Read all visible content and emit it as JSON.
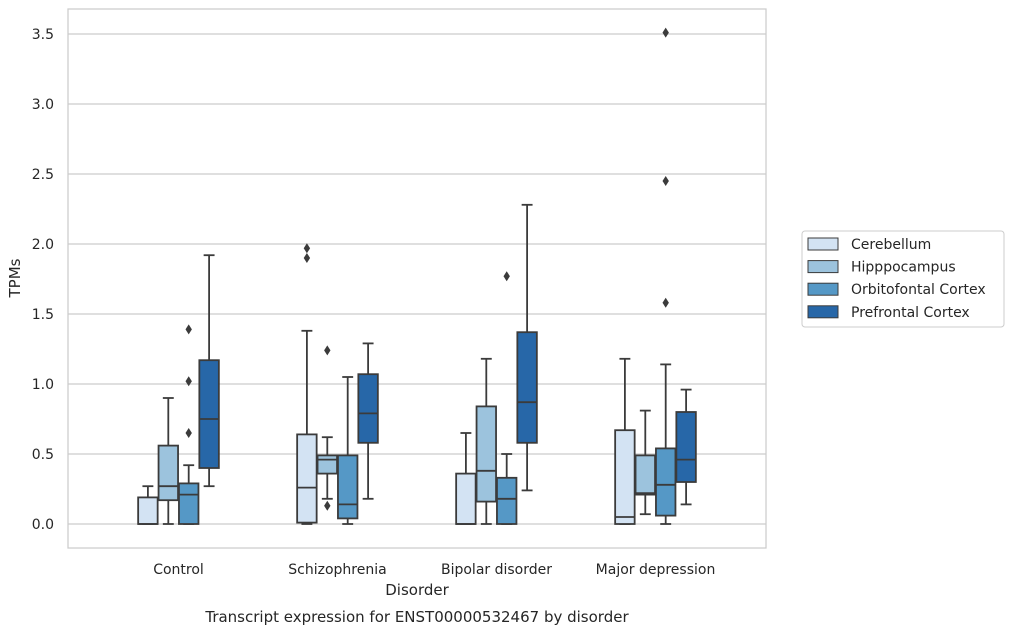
{
  "chart_data": {
    "type": "boxplot",
    "title": "Transcript expression for ENST00000532467 by disorder",
    "xlabel": "Disorder",
    "ylabel": "TPMs",
    "ylim": [
      -0.17,
      3.69
    ],
    "yticks": [
      0.0,
      0.5,
      1.0,
      1.5,
      2.0,
      2.5,
      3.0,
      3.5
    ],
    "ytick_labels": [
      "0.0",
      "0.5",
      "1.0",
      "1.5",
      "2.0",
      "2.5",
      "3.0",
      "3.5"
    ],
    "grid": "horizontal",
    "legend_position": "right",
    "categories": [
      "Control",
      "Schizophrenia",
      "Bipolar disorder",
      "Major depression"
    ],
    "series": [
      {
        "name": "Cerebellum",
        "color": "#d3e3f3",
        "boxes": [
          {
            "whislo": 0.0,
            "q1": 0.0,
            "med": 0.0,
            "q3": 0.19,
            "whishi": 0.27,
            "fliers": []
          },
          {
            "whislo": 0.0,
            "q1": 0.01,
            "med": 0.26,
            "q3": 0.64,
            "whishi": 1.38,
            "fliers": [
              1.9,
              1.97
            ]
          },
          {
            "whislo": 0.0,
            "q1": 0.0,
            "med": 0.0,
            "q3": 0.36,
            "whishi": 0.65,
            "fliers": []
          },
          {
            "whislo": 0.0,
            "q1": 0.0,
            "med": 0.05,
            "q3": 0.67,
            "whishi": 1.18,
            "fliers": []
          }
        ]
      },
      {
        "name": "Hipppocampus",
        "color": "#9cc3dd",
        "boxes": [
          {
            "whislo": 0.0,
            "q1": 0.17,
            "med": 0.27,
            "q3": 0.56,
            "whishi": 0.9,
            "fliers": []
          },
          {
            "whislo": 0.18,
            "q1": 0.36,
            "med": 0.46,
            "q3": 0.49,
            "whishi": 0.62,
            "fliers": [
              0.13,
              1.24
            ]
          },
          {
            "whislo": 0.0,
            "q1": 0.16,
            "med": 0.38,
            "q3": 0.84,
            "whishi": 1.18,
            "fliers": []
          },
          {
            "whislo": 0.07,
            "q1": 0.21,
            "med": 0.22,
            "q3": 0.49,
            "whishi": 0.81,
            "fliers": []
          }
        ]
      },
      {
        "name": "Orbitofontal Cortex",
        "color": "#5598c6",
        "boxes": [
          {
            "whislo": 0.0,
            "q1": 0.0,
            "med": 0.21,
            "q3": 0.29,
            "whishi": 0.42,
            "fliers": [
              0.65,
              1.02,
              1.39
            ]
          },
          {
            "whislo": 0.0,
            "q1": 0.04,
            "med": 0.14,
            "q3": 0.49,
            "whishi": 1.05,
            "fliers": []
          },
          {
            "whislo": 0.0,
            "q1": 0.0,
            "med": 0.18,
            "q3": 0.33,
            "whishi": 0.5,
            "fliers": [
              1.77
            ]
          },
          {
            "whislo": 0.0,
            "q1": 0.06,
            "med": 0.28,
            "q3": 0.54,
            "whishi": 1.14,
            "fliers": [
              1.58,
              2.45,
              3.51
            ]
          }
        ]
      },
      {
        "name": "Prefrontal Cortex",
        "color": "#2767a8",
        "boxes": [
          {
            "whislo": 0.27,
            "q1": 0.4,
            "med": 0.75,
            "q3": 1.17,
            "whishi": 1.92,
            "fliers": []
          },
          {
            "whislo": 0.18,
            "q1": 0.58,
            "med": 0.79,
            "q3": 1.07,
            "whishi": 1.29,
            "fliers": []
          },
          {
            "whislo": 0.24,
            "q1": 0.58,
            "med": 0.87,
            "q3": 1.37,
            "whishi": 2.28,
            "fliers": []
          },
          {
            "whislo": 0.14,
            "q1": 0.3,
            "med": 0.46,
            "q3": 0.8,
            "whishi": 0.96,
            "fliers": []
          }
        ]
      }
    ]
  }
}
